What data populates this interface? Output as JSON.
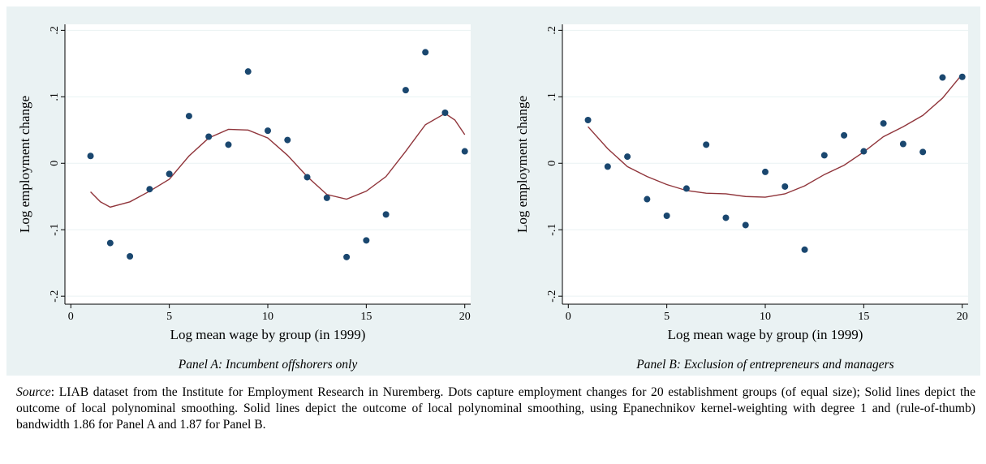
{
  "chart_data": [
    {
      "type": "scatter",
      "x_label": "Log mean wage by group (in 1999)",
      "y_label": "Log employment change",
      "caption": "Panel A: Incumbent offshorers only",
      "xlim": [
        -0.3,
        20.3
      ],
      "ylim": [
        -0.212,
        0.209
      ],
      "xticks": [
        0,
        5,
        10,
        15,
        20
      ],
      "yticks": [
        {
          "value": -0.2,
          "label": "-.2"
        },
        {
          "value": -0.1,
          "label": "-.1"
        },
        0,
        {
          "value": 0.1,
          "label": ".1"
        },
        {
          "value": 0.2,
          "label": ".2"
        }
      ],
      "grid": true,
      "points": {
        "color": "#1a476f",
        "x": [
          1,
          2,
          3,
          4,
          5,
          6,
          7,
          8,
          9,
          10,
          11,
          12,
          13,
          14,
          15,
          16,
          17,
          18,
          19,
          20
        ],
        "values": [
          0.011,
          -0.12,
          -0.14,
          -0.039,
          -0.016,
          0.071,
          0.04,
          0.028,
          0.138,
          0.049,
          0.035,
          -0.021,
          -0.052,
          -0.141,
          -0.116,
          -0.077,
          0.11,
          0.167,
          0.076,
          0.018
        ]
      },
      "fit": {
        "color": "#90353b",
        "x": [
          1,
          1.5,
          2,
          3,
          4,
          5,
          6,
          7,
          8,
          9,
          10,
          11,
          12,
          13,
          14,
          15,
          16,
          17,
          18,
          19,
          19.5,
          20
        ],
        "values": [
          -0.043,
          -0.058,
          -0.066,
          -0.058,
          -0.042,
          -0.024,
          0.011,
          0.038,
          0.051,
          0.05,
          0.038,
          0.012,
          -0.02,
          -0.047,
          -0.054,
          -0.042,
          -0.02,
          0.018,
          0.058,
          0.075,
          0.065,
          0.043
        ]
      }
    },
    {
      "type": "scatter",
      "x_label": "Log mean wage by group (in 1999)",
      "y_label": "Log employment change",
      "caption": "Panel B: Exclusion of entrepreneurs and managers",
      "xlim": [
        -0.3,
        20.3
      ],
      "ylim": [
        -0.212,
        0.209
      ],
      "xticks": [
        0,
        5,
        10,
        15,
        20
      ],
      "yticks": [
        {
          "value": -0.2,
          "label": "-.2"
        },
        {
          "value": -0.1,
          "label": "-.1"
        },
        0,
        {
          "value": 0.1,
          "label": ".1"
        },
        {
          "value": 0.2,
          "label": ".2"
        }
      ],
      "grid": true,
      "points": {
        "color": "#1a476f",
        "x": [
          1,
          2,
          3,
          4,
          5,
          6,
          7,
          8,
          9,
          10,
          11,
          12,
          13,
          14,
          15,
          16,
          17,
          18,
          19,
          20
        ],
        "values": [
          0.065,
          -0.005,
          0.01,
          -0.054,
          -0.079,
          -0.038,
          0.028,
          -0.082,
          -0.093,
          -0.013,
          -0.035,
          -0.13,
          0.012,
          0.042,
          0.018,
          0.06,
          0.029,
          0.017,
          0.129,
          0.13
        ]
      },
      "fit": {
        "color": "#90353b",
        "x": [
          1,
          2,
          3,
          4,
          5,
          6,
          7,
          8,
          9,
          10,
          11,
          12,
          13,
          14,
          15,
          16,
          17,
          18,
          19,
          20
        ],
        "values": [
          0.055,
          0.022,
          -0.005,
          -0.02,
          -0.032,
          -0.041,
          -0.045,
          -0.046,
          -0.05,
          -0.051,
          -0.046,
          -0.034,
          -0.017,
          -0.003,
          0.017,
          0.04,
          0.055,
          0.072,
          0.098,
          0.134
        ]
      }
    }
  ],
  "note": {
    "label": "Source",
    "text": ": LIAB dataset from the Institute for Employment Research in Nuremberg. Dots capture employment changes for 20 establishment groups (of equal size); Solid lines depict the outcome of local polynominal smoothing. Solid lines depict the outcome of local polynominal smoothing, using Epanechnikov kernel-weighting with degree 1 and (rule-of-thumb) bandwidth 1.86 for Panel A and 1.87 for Panel B."
  }
}
